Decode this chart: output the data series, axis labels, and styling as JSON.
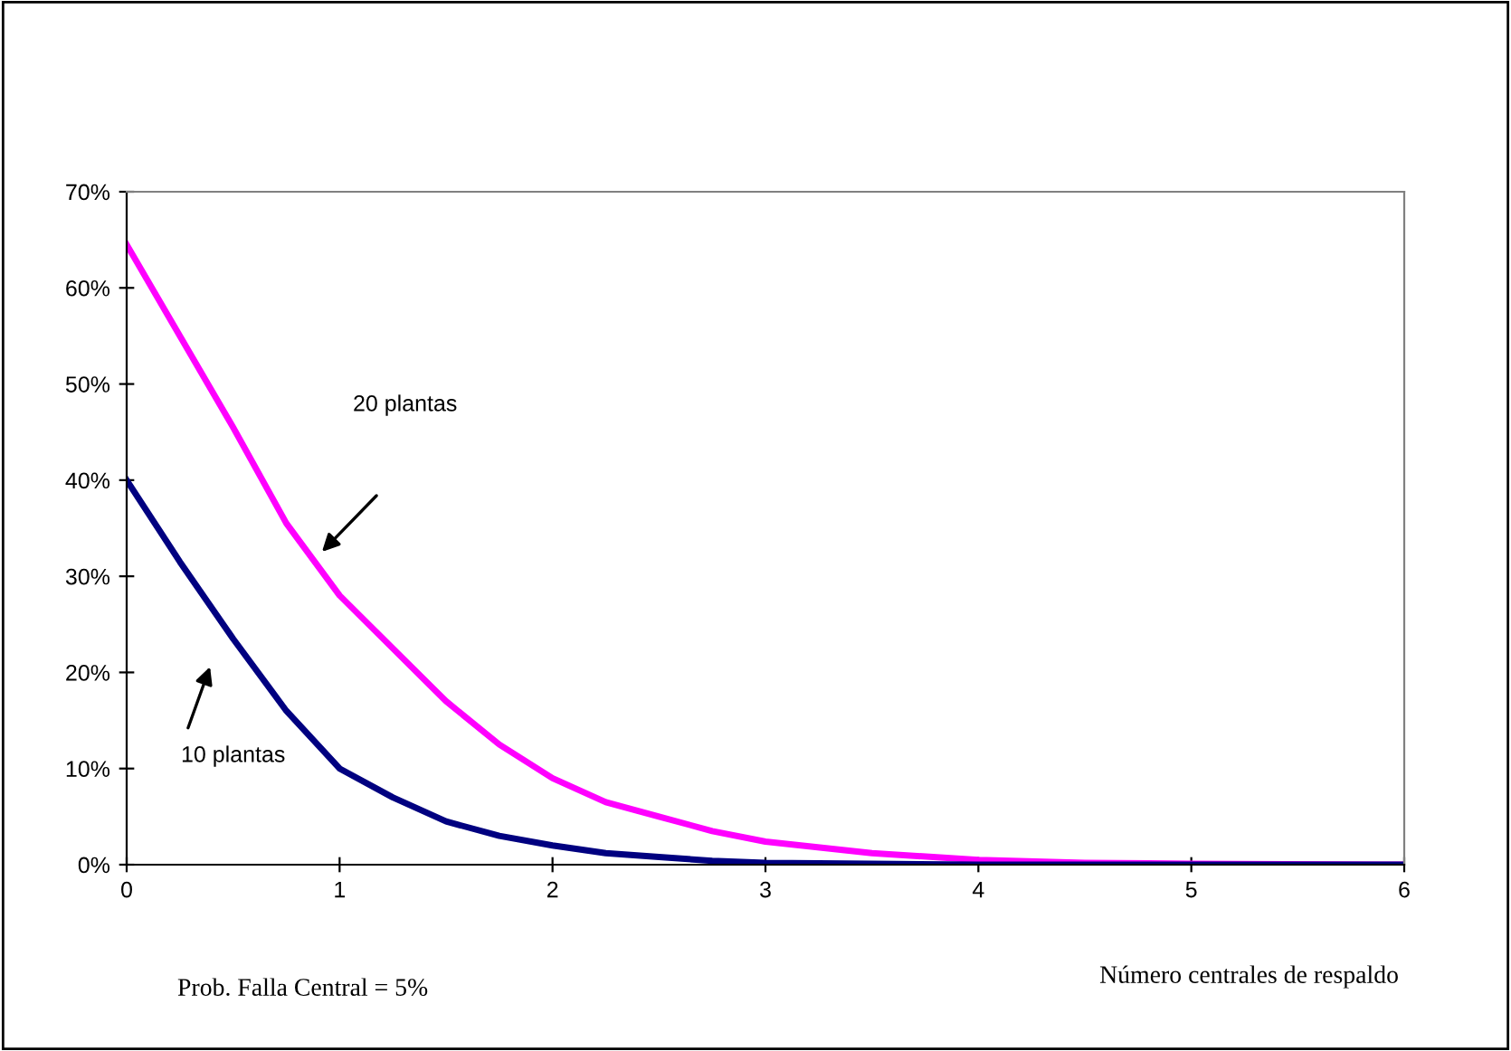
{
  "chart_data": {
    "type": "line",
    "xlabel": "Número centrales de respaldo",
    "x": [
      0,
      0.25,
      0.5,
      0.75,
      1,
      1.25,
      1.5,
      1.75,
      2,
      2.25,
      2.5,
      2.75,
      3,
      3.5,
      4,
      4.5,
      5,
      6
    ],
    "series": [
      {
        "color": "#ff00ff",
        "values": [
          64.5,
          55,
          45.5,
          35.5,
          28,
          22.5,
          17,
          12.5,
          9,
          6.5,
          5,
          3.5,
          2.4,
          1.2,
          0.5,
          0.2,
          0.1,
          0
        ]
      },
      {
        "color": "#000080",
        "values": [
          40,
          31.5,
          23.5,
          16,
          10,
          7,
          4.5,
          3,
          2,
          1.2,
          0.8,
          0.4,
          0.2,
          0.1,
          0,
          0,
          0,
          0
        ]
      }
    ],
    "annotations": [
      "20 plantas",
      "10 plantas",
      "Prob. Falla Central = 5%"
    ],
    "xlim": [
      0,
      6
    ],
    "xticks": [
      0,
      1,
      2,
      3,
      4,
      5,
      6
    ],
    "ylim": [
      0,
      70
    ],
    "yticks": [
      {
        "value": 0,
        "label": "0%"
      },
      {
        "value": 10,
        "label": "10%"
      },
      {
        "value": 20,
        "label": "20%"
      },
      {
        "value": 30,
        "label": "30%"
      },
      {
        "value": 40,
        "label": "40%"
      },
      {
        "value": 50,
        "label": "50%"
      },
      {
        "value": 60,
        "label": "60%"
      },
      {
        "value": 70,
        "label": "70%"
      }
    ],
    "grid": false,
    "legend": false,
    "marker": "none",
    "line_style": "solid"
  }
}
